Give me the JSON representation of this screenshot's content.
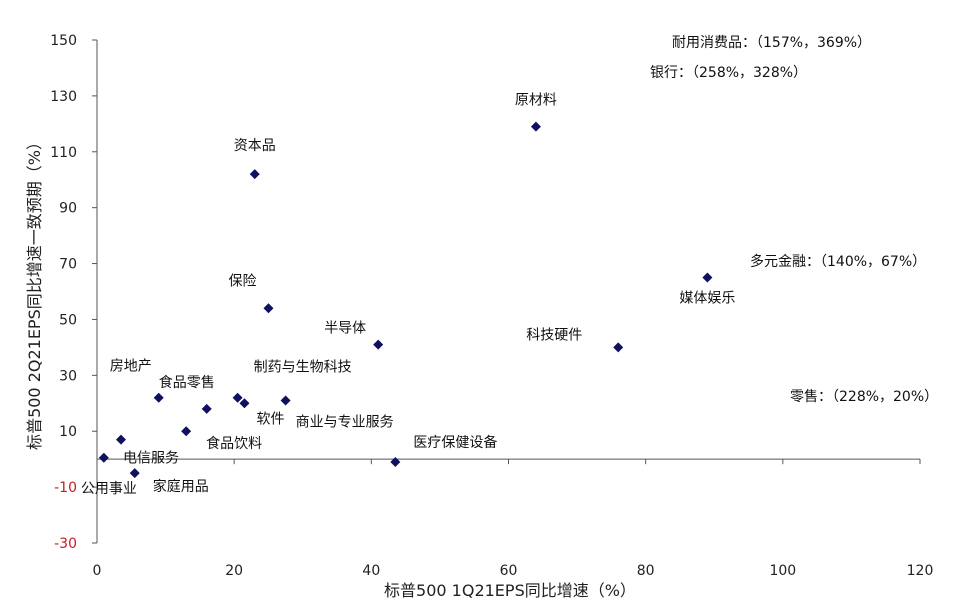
{
  "chart_data": {
    "type": "scatter",
    "xlabel": "标普500 1Q21EPS同比增速（%）",
    "ylabel": "标普500 2Q21EPS同比增速一致预期（%）",
    "xlim": [
      0,
      120
    ],
    "ylim": [
      -30,
      150
    ],
    "x_ticks": [
      "0",
      "20",
      "40",
      "60",
      "80",
      "100",
      "120"
    ],
    "y_ticks": [
      "150",
      "130",
      "110",
      "90",
      "70",
      "50",
      "30",
      "10",
      "-10",
      "-30"
    ],
    "points": [
      {
        "label": "原材料",
        "x": 64,
        "y": 119
      },
      {
        "label": "资本品",
        "x": 23,
        "y": 102
      },
      {
        "label": "媒体娱乐",
        "x": 89,
        "y": 65
      },
      {
        "label": "保险",
        "x": 25,
        "y": 54
      },
      {
        "label": "半导体",
        "x": 41,
        "y": 41
      },
      {
        "label": "科技硬件",
        "x": 76,
        "y": 40
      },
      {
        "label": "房地产",
        "x": 9,
        "y": 22
      },
      {
        "label": "食品零售",
        "x": 16,
        "y": 18
      },
      {
        "label": "制药与生物科技",
        "x": 20.5,
        "y": 22
      },
      {
        "label": "软件",
        "x": 21.5,
        "y": 20
      },
      {
        "label": "商业与专业服务",
        "x": 27.5,
        "y": 21
      },
      {
        "label": "食品饮料",
        "x": 13,
        "y": 10
      },
      {
        "label": "电信服务",
        "x": 3.5,
        "y": 7
      },
      {
        "label": "公用事业",
        "x": 1,
        "y": 0.5
      },
      {
        "label": "家庭用品",
        "x": 5.5,
        "y": -5
      },
      {
        "label": "医疗保健设备",
        "x": 43.5,
        "y": -1
      }
    ],
    "annotations": [
      "耐用消费品：（157%，369%）",
      "银行：（258%，328%）",
      "多元金融：（140%，67%）",
      "零售：（228%，20%）"
    ],
    "grid": false,
    "marker_color": "#101060"
  }
}
